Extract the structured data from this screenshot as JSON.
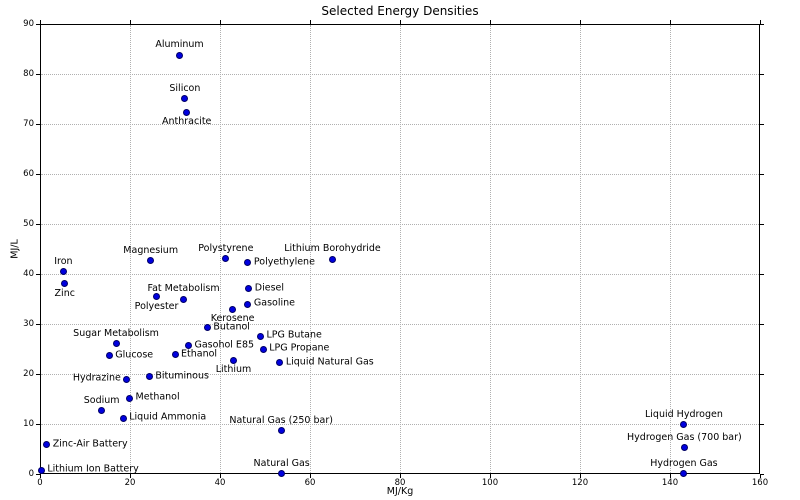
{
  "chart_data": {
    "type": "scatter",
    "title": "Selected Energy Densities",
    "xlabel": "MJ/Kg",
    "ylabel": "MJ/L",
    "xlim": [
      0,
      160
    ],
    "ylim": [
      0,
      90
    ],
    "xticks": [
      0,
      20,
      40,
      60,
      80,
      100,
      120,
      140,
      160
    ],
    "yticks": [
      0,
      10,
      20,
      30,
      40,
      50,
      60,
      70,
      80,
      90
    ],
    "grid": true,
    "grid_style": "dotted",
    "grid_color": "#b0b0b0",
    "marker_color": "#0000e0",
    "marker_edge_color": "#000066",
    "points": [
      {
        "label": "Aluminum",
        "x": 31.0,
        "y": 83.8,
        "label_pos": "above"
      },
      {
        "label": "Silicon",
        "x": 32.2,
        "y": 75.1,
        "label_pos": "above"
      },
      {
        "label": "Anthracite",
        "x": 32.6,
        "y": 72.4,
        "label_pos": "below"
      },
      {
        "label": "Magnesium",
        "x": 24.6,
        "y": 42.7,
        "label_pos": "above"
      },
      {
        "label": "Iron",
        "x": 5.2,
        "y": 40.5,
        "label_pos": "above"
      },
      {
        "label": "Zinc",
        "x": 5.5,
        "y": 38.1,
        "label_pos": "below"
      },
      {
        "label": "Polystyrene",
        "x": 41.3,
        "y": 43.1,
        "label_pos": "above"
      },
      {
        "label": "Polyethylene",
        "x": 46.2,
        "y": 42.3,
        "label_pos": "right"
      },
      {
        "label": "Lithium Borohydride",
        "x": 65.0,
        "y": 43.0,
        "label_pos": "above"
      },
      {
        "label": "Diesel",
        "x": 46.4,
        "y": 37.1,
        "label_pos": "right"
      },
      {
        "label": "Fat Metabolism",
        "x": 31.9,
        "y": 35.0,
        "label_pos": "above"
      },
      {
        "label": "Polyester",
        "x": 25.9,
        "y": 35.5,
        "label_pos": "below"
      },
      {
        "label": "Gasoline",
        "x": 46.2,
        "y": 34.0,
        "label_pos": "right"
      },
      {
        "label": "Kerosene",
        "x": 42.8,
        "y": 33.0,
        "label_pos": "below"
      },
      {
        "label": "Butanol",
        "x": 37.2,
        "y": 29.3,
        "label_pos": "right"
      },
      {
        "label": "LPG Butane",
        "x": 49.0,
        "y": 27.6,
        "label_pos": "right"
      },
      {
        "label": "Sugar Metabolism",
        "x": 16.9,
        "y": 26.1,
        "label_pos": "above"
      },
      {
        "label": "Gasohol E85",
        "x": 33.0,
        "y": 25.7,
        "label_pos": "right"
      },
      {
        "label": "LPG Propane",
        "x": 49.6,
        "y": 25.0,
        "label_pos": "right"
      },
      {
        "label": "Glucose",
        "x": 15.4,
        "y": 23.7,
        "label_pos": "right"
      },
      {
        "label": "Ethanol",
        "x": 30.0,
        "y": 23.9,
        "label_pos": "right"
      },
      {
        "label": "Lithium",
        "x": 43.0,
        "y": 22.8,
        "label_pos": "below"
      },
      {
        "label": "Liquid Natural Gas",
        "x": 53.3,
        "y": 22.3,
        "label_pos": "right"
      },
      {
        "label": "Bituminous",
        "x": 24.3,
        "y": 19.5,
        "label_pos": "right"
      },
      {
        "label": "Hydrazine",
        "x": 19.3,
        "y": 19.0,
        "label_pos": "left"
      },
      {
        "label": "Methanol",
        "x": 19.9,
        "y": 15.2,
        "label_pos": "right"
      },
      {
        "label": "Sodium",
        "x": 13.7,
        "y": 12.7,
        "label_pos": "above"
      },
      {
        "label": "Liquid Ammonia",
        "x": 18.5,
        "y": 11.2,
        "label_pos": "right"
      },
      {
        "label": "Natural Gas (250 bar)",
        "x": 53.6,
        "y": 8.7,
        "label_pos": "above"
      },
      {
        "label": "Zinc-Air Battery",
        "x": 1.5,
        "y": 5.9,
        "label_pos": "right"
      },
      {
        "label": "Lithium Ion Battery",
        "x": 0.3,
        "y": 0.8,
        "label_pos": "right"
      },
      {
        "label": "Natural Gas",
        "x": 53.7,
        "y": 0.1,
        "label_pos": "above"
      },
      {
        "label": "Liquid Hydrogen",
        "x": 143.1,
        "y": 9.9,
        "label_pos": "above"
      },
      {
        "label": "Hydrogen Gas (700 bar)",
        "x": 143.2,
        "y": 5.3,
        "label_pos": "above"
      },
      {
        "label": "Hydrogen Gas",
        "x": 143.1,
        "y": 0.1,
        "label_pos": "above"
      }
    ]
  }
}
